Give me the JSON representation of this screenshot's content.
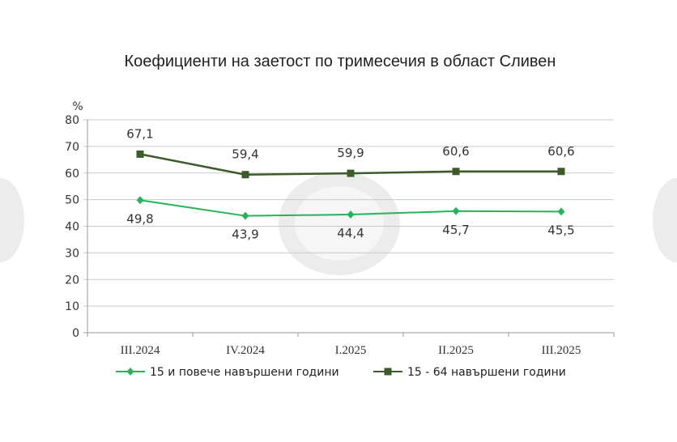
{
  "chart_data": {
    "type": "line",
    "title": "Коефициенти на заетост по тримесечия в област Сливен",
    "ylabel": "%",
    "ylim": [
      0,
      80
    ],
    "yticks": [
      "0",
      "10",
      "20",
      "30",
      "40",
      "50",
      "60",
      "70",
      "80"
    ],
    "grid": true,
    "legend_position": "bottom",
    "categories": [
      "III.2024",
      "IV.2024",
      "I.2025",
      "II.2025",
      "III.2025"
    ],
    "series": [
      {
        "name": "15 и повече навършени години",
        "marker": "diamond",
        "color": "#27b35a",
        "values": [
          49.8,
          43.9,
          44.4,
          45.7,
          45.5
        ],
        "labels": [
          "49,8",
          "43,9",
          "44,4",
          "45,7",
          "45,5"
        ],
        "label_position": "below"
      },
      {
        "name": "15 - 64 навършени години",
        "marker": "square",
        "color": "#3d5a2a",
        "values": [
          67.1,
          59.4,
          59.9,
          60.6,
          60.6
        ],
        "labels": [
          "67,1",
          "59,4",
          "59,9",
          "60,6",
          "60,6"
        ],
        "label_position": "above"
      }
    ]
  }
}
